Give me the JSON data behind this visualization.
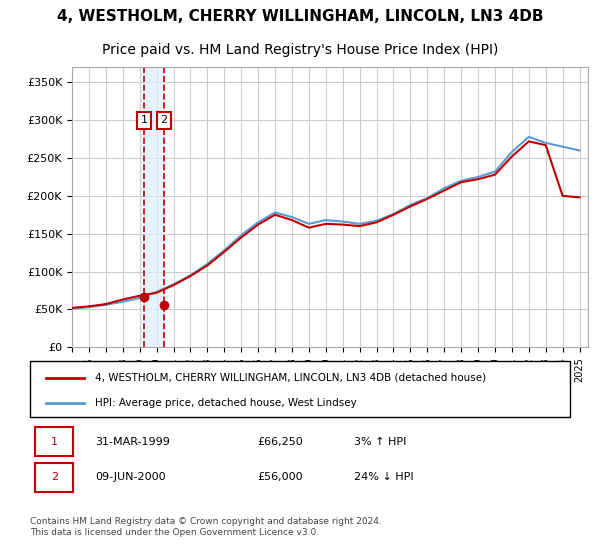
{
  "title": "4, WESTHOLM, CHERRY WILLINGHAM, LINCOLN, LN3 4DB",
  "subtitle": "Price paid vs. HM Land Registry's House Price Index (HPI)",
  "ylabel_ticks": [
    "£0",
    "£50K",
    "£100K",
    "£150K",
    "£200K",
    "£250K",
    "£300K",
    "£350K"
  ],
  "ytick_values": [
    0,
    50000,
    100000,
    150000,
    200000,
    250000,
    300000,
    350000
  ],
  "ylim": [
    0,
    370000
  ],
  "xlim_start": 1995.0,
  "xlim_end": 2025.5,
  "legend_line1": "4, WESTHOLM, CHERRY WILLINGHAM, LINCOLN, LN3 4DB (detached house)",
  "legend_line2": "HPI: Average price, detached house, West Lindsey",
  "sale1_label": "1",
  "sale1_date": "31-MAR-1999",
  "sale1_price": "£66,250",
  "sale1_hpi": "3% ↑ HPI",
  "sale1_year": 1999.25,
  "sale1_value": 66250,
  "sale2_label": "2",
  "sale2_date": "09-JUN-2000",
  "sale2_price": "£56,000",
  "sale2_hpi": "24% ↓ HPI",
  "sale2_year": 2000.44,
  "sale2_value": 56000,
  "copyright": "Contains HM Land Registry data © Crown copyright and database right 2024.\nThis data is licensed under the Open Government Licence v3.0.",
  "hpi_color": "#5b9bd5",
  "price_color": "#c00000",
  "background_color": "#ffffff",
  "plot_bg_color": "#ffffff",
  "grid_color": "#cccccc",
  "title_fontsize": 11,
  "subtitle_fontsize": 10,
  "sale_box_color": "#c00000",
  "shade_color": "#ddeeff",
  "hpi_years": [
    1995,
    1996,
    1997,
    1998,
    1999,
    2000,
    2001,
    2002,
    2003,
    2004,
    2005,
    2006,
    2007,
    2008,
    2009,
    2010,
    2011,
    2012,
    2013,
    2014,
    2015,
    2016,
    2017,
    2018,
    2019,
    2020,
    2021,
    2022,
    2023,
    2024,
    2025
  ],
  "hpi_values": [
    51000,
    53000,
    56000,
    60000,
    65000,
    73000,
    83000,
    95000,
    110000,
    128000,
    148000,
    165000,
    178000,
    172000,
    163000,
    168000,
    166000,
    163000,
    167000,
    176000,
    188000,
    197000,
    210000,
    220000,
    225000,
    232000,
    258000,
    278000,
    270000,
    265000,
    260000
  ],
  "price_years": [
    1995,
    1996,
    1997,
    1998,
    1999,
    2000,
    2001,
    2002,
    2003,
    2004,
    2005,
    2006,
    2007,
    2008,
    2009,
    2010,
    2011,
    2012,
    2013,
    2014,
    2015,
    2016,
    2017,
    2018,
    2019,
    2020,
    2021,
    2022,
    2023,
    2024,
    2025
  ],
  "price_values": [
    52000,
    54000,
    57000,
    63000,
    68000,
    72000,
    82000,
    94000,
    108000,
    126000,
    145000,
    162000,
    175000,
    168000,
    158000,
    163000,
    162000,
    160000,
    165000,
    175000,
    186000,
    196000,
    207000,
    218000,
    222000,
    228000,
    252000,
    272000,
    267000,
    200000,
    198000
  ]
}
